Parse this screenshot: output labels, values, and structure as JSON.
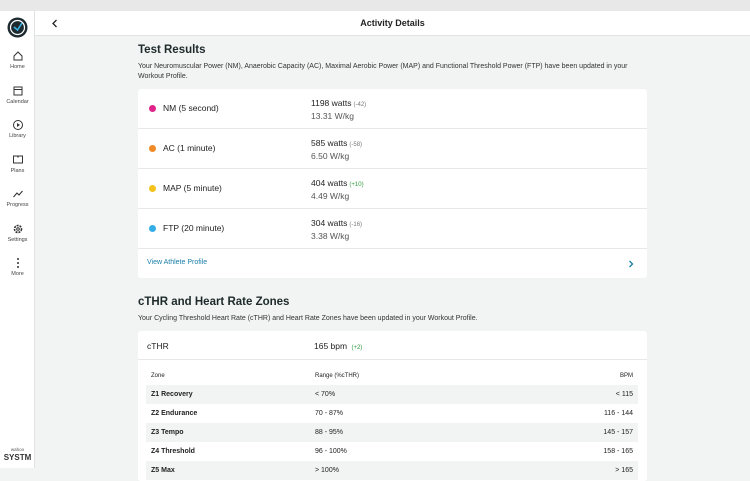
{
  "sidebar": {
    "items": [
      "Home",
      "Calendar",
      "Library",
      "Plans",
      "Progress",
      "Settings",
      "More"
    ],
    "brand_small": "wahoo",
    "brand": "SYSTM"
  },
  "header": {
    "title": "Activity Details"
  },
  "test_results": {
    "title": "Test Results",
    "description": "Your Neuromuscular Power (NM), Anaerobic Capacity (AC), Maximal Aerobic Power (MAP) and Functional Threshold Power (FTP) have been updated in your Workout Profile.",
    "items": [
      {
        "name": "NM (5 second)",
        "color": "#e0238a",
        "value": "1198 watts",
        "delta": "(-42)",
        "sub": "13.31 W/kg"
      },
      {
        "name": "AC (1 minute)",
        "color": "#ef8a26",
        "value": "585 watts",
        "delta": "(-58)",
        "sub": "6.50 W/kg"
      },
      {
        "name": "MAP (5 minute)",
        "color": "#f3c21d",
        "value": "404 watts",
        "delta": "(+10)",
        "sub": "4.49 W/kg"
      },
      {
        "name": "FTP (20 minute)",
        "color": "#35ade6",
        "value": "304 watts",
        "delta": "(-16)",
        "sub": "3.38 W/kg"
      }
    ],
    "link": "View Athlete Profile"
  },
  "cthr": {
    "title": "cTHR and Heart Rate Zones",
    "description": "Your Cycling Threshold Heart Rate (cTHR) and Heart Rate Zones have been updated in your Workout Profile.",
    "label": "cTHR",
    "value": "165 bpm",
    "delta": "(+2)",
    "table": {
      "headers": [
        "Zone",
        "Range (%cTHR)",
        "BPM"
      ],
      "rows": [
        [
          "Z1 Recovery",
          "< 70%",
          "< 115"
        ],
        [
          "Z2 Endurance",
          "70 - 87%",
          "116 - 144"
        ],
        [
          "Z3 Tempo",
          "88 - 95%",
          "145 - 157"
        ],
        [
          "Z4 Threshold",
          "96 - 100%",
          "158 - 165"
        ],
        [
          "Z5 Max",
          "> 100%",
          "> 165"
        ]
      ]
    }
  }
}
